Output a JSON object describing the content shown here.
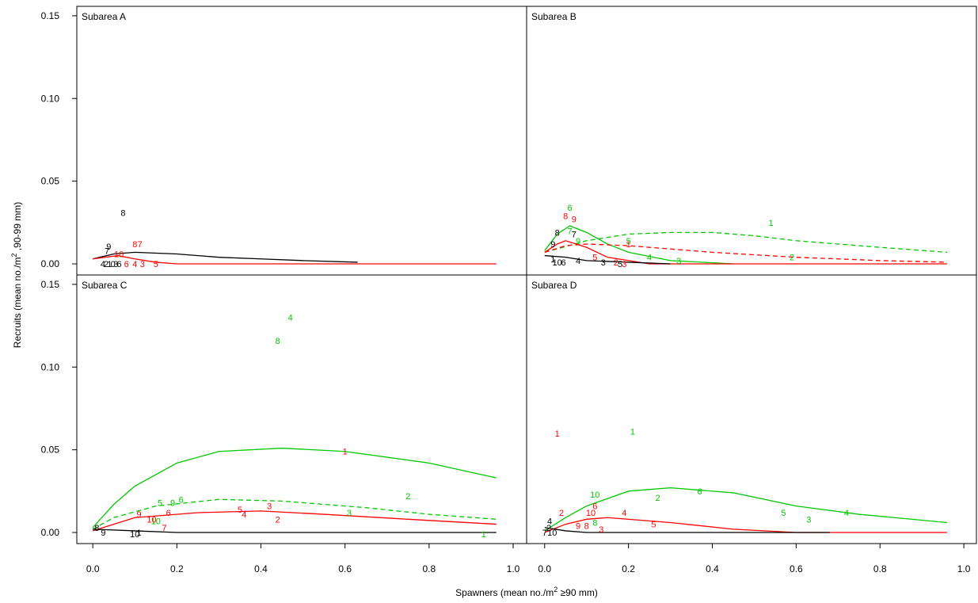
{
  "y_label": [
    "Recruits (mean no./m",
    "2",
    " ,90-99 mm)"
  ],
  "x_label": [
    "Spawners (mean no./m",
    "2",
    " ≥90 mm)"
  ],
  "chart_data": [
    {
      "type": "scatter",
      "title": "Subarea A",
      "xlim": [
        -0.038,
        1.032
      ],
      "ylim": [
        -0.0067,
        0.1557
      ],
      "yticks": [
        {
          "value": 0,
          "label": "0.00"
        },
        {
          "value": 0.05,
          "label": "0.05"
        },
        {
          "value": 0.1,
          "label": "0.10"
        },
        {
          "value": 0.15,
          "label": "0.15"
        }
      ],
      "series": [
        {
          "style": "solid",
          "color": "#000000",
          "x": [
            0,
            0.05,
            0.1,
            0.2,
            0.3,
            0.4,
            0.5,
            0.63
          ],
          "values": [
            0.003,
            0.006,
            0.007,
            0.006,
            0.004,
            0.003,
            0.002,
            0.001
          ]
        },
        {
          "style": "solid",
          "color": "#ff0000",
          "x": [
            0,
            0.03,
            0.06,
            0.1,
            0.15,
            0.2,
            0.4,
            0.96
          ],
          "values": [
            0.003,
            0.004,
            0.005,
            0.003,
            0.001,
            0.0,
            0.0,
            0.0
          ]
        },
        {
          "style": "labels",
          "color": "#000000",
          "labels": [
            "8",
            "9",
            "7",
            "4",
            "2",
            "1",
            "0",
            "3",
            "6"
          ],
          "x": [
            0.072,
            0.038,
            0.034,
            0.024,
            0.032,
            0.04,
            0.048,
            0.055,
            0.063
          ],
          "values": [
            0.031,
            0.0105,
            0.008,
            0.0,
            0.0,
            0.0,
            0.0,
            0.0,
            0.0
          ]
        },
        {
          "style": "labels",
          "color": "#ff0000",
          "labels": [
            "8",
            "7",
            "10",
            "4",
            "3",
            "6",
            "5"
          ],
          "x": [
            0.1,
            0.112,
            0.062,
            0.1,
            0.118,
            0.08,
            0.15
          ],
          "values": [
            0.012,
            0.012,
            0.006,
            0.0,
            0.0,
            0.0,
            0.0
          ]
        }
      ]
    },
    {
      "type": "scatter",
      "title": "Subarea B",
      "xlim": [
        -0.043,
        1.03
      ],
      "ylim": [
        -0.0067,
        0.1557
      ],
      "series": [
        {
          "style": "solid",
          "color": "#00c800",
          "x": [
            0,
            0.03,
            0.06,
            0.1,
            0.15,
            0.2,
            0.3,
            0.45
          ],
          "values": [
            0.008,
            0.018,
            0.023,
            0.019,
            0.012,
            0.007,
            0.002,
            0.0
          ]
        },
        {
          "style": "dashed",
          "color": "#00c800",
          "x": [
            0,
            0.1,
            0.2,
            0.3,
            0.4,
            0.5,
            0.6,
            0.8,
            0.96
          ],
          "values": [
            0.007,
            0.014,
            0.018,
            0.019,
            0.019,
            0.017,
            0.014,
            0.01,
            0.007
          ]
        },
        {
          "style": "solid",
          "color": "#ff0000",
          "x": [
            0,
            0.03,
            0.05,
            0.1,
            0.15,
            0.25,
            0.5,
            0.96
          ],
          "values": [
            0.007,
            0.012,
            0.014,
            0.01,
            0.004,
            0.0,
            0.0,
            0.0
          ]
        },
        {
          "style": "dashed",
          "color": "#ff0000",
          "x": [
            0,
            0.05,
            0.1,
            0.2,
            0.4,
            0.6,
            0.8,
            0.96
          ],
          "values": [
            0.007,
            0.011,
            0.012,
            0.011,
            0.007,
            0.004,
            0.002,
            0.001
          ]
        },
        {
          "style": "solid",
          "color": "#000000",
          "x": [
            0,
            0.05,
            0.1,
            0.2,
            0.3
          ],
          "values": [
            0.005,
            0.004,
            0.002,
            0.001,
            0.0
          ]
        },
        {
          "style": "labels",
          "color": "#00c800",
          "labels": [
            "1",
            "6",
            "2",
            "5",
            "3",
            "9",
            "4",
            "7"
          ],
          "x": [
            0.54,
            0.06,
            0.59,
            0.2,
            0.32,
            0.08,
            0.25,
            0.06
          ],
          "values": [
            0.025,
            0.034,
            0.004,
            0.014,
            0.002,
            0.014,
            0.004,
            0.02
          ]
        },
        {
          "style": "labels",
          "color": "#ff0000",
          "labels": [
            "8",
            "9",
            "1",
            "5",
            "2",
            "3"
          ],
          "x": [
            0.05,
            0.07,
            0.2,
            0.12,
            0.17,
            0.19
          ],
          "values": [
            0.029,
            0.027,
            0.012,
            0.004,
            0.001,
            0.0
          ]
        },
        {
          "style": "labels",
          "color": "#000000",
          "labels": [
            "8",
            "9",
            "7",
            "1",
            "10",
            "6",
            "3",
            "4",
            "5"
          ],
          "x": [
            0.03,
            0.02,
            0.07,
            0.02,
            0.03,
            0.045,
            0.14,
            0.08,
            0.18
          ],
          "values": [
            0.019,
            0.012,
            0.018,
            0.003,
            0.001,
            0.001,
            0.001,
            0.002,
            0.0
          ]
        }
      ]
    },
    {
      "type": "scatter",
      "title": "Subarea C",
      "xlim": [
        -0.038,
        1.032
      ],
      "ylim": [
        -0.0067,
        0.1557
      ],
      "yticks": [
        {
          "value": 0,
          "label": "0.00"
        },
        {
          "value": 0.05,
          "label": "0.05"
        },
        {
          "value": 0.1,
          "label": "0.10"
        },
        {
          "value": 0.15,
          "label": "0.15"
        }
      ],
      "xticks": [
        {
          "value": 0,
          "label": "0.0"
        },
        0.2,
        0.4,
        0.6,
        0.8,
        {
          "value": 1,
          "label": "1.0"
        }
      ],
      "series": [
        {
          "style": "solid",
          "color": "#00c800",
          "x": [
            0,
            0.05,
            0.1,
            0.2,
            0.3,
            0.45,
            0.6,
            0.8,
            0.96
          ],
          "values": [
            0.003,
            0.017,
            0.028,
            0.042,
            0.049,
            0.051,
            0.049,
            0.042,
            0.033
          ]
        },
        {
          "style": "dashed",
          "color": "#00c800",
          "x": [
            0,
            0.05,
            0.15,
            0.3,
            0.45,
            0.65,
            0.8,
            0.96
          ],
          "values": [
            0.002,
            0.009,
            0.016,
            0.02,
            0.019,
            0.015,
            0.011,
            0.008
          ]
        },
        {
          "style": "solid",
          "color": "#ff0000",
          "x": [
            0,
            0.1,
            0.25,
            0.4,
            0.55,
            0.75,
            0.96
          ],
          "values": [
            0.001,
            0.009,
            0.012,
            0.013,
            0.011,
            0.008,
            0.005
          ]
        },
        {
          "style": "solid",
          "color": "#000000",
          "x": [
            0,
            0.1,
            0.2,
            0.5,
            0.96
          ],
          "values": [
            0.002,
            0.001,
            0.0,
            0.0,
            0.0
          ]
        },
        {
          "style": "labels",
          "color": "#00c800",
          "labels": [
            "4",
            "8",
            "1",
            "2",
            "3",
            "6",
            "5",
            "9",
            "10"
          ],
          "x": [
            0.47,
            0.44,
            0.93,
            0.75,
            0.61,
            0.21,
            0.16,
            0.19,
            0.15
          ],
          "values": [
            0.13,
            0.116,
            -0.001,
            0.022,
            0.012,
            0.02,
            0.018,
            0.018,
            0.007
          ]
        },
        {
          "style": "labels",
          "color": "#ff0000",
          "labels": [
            "1",
            "3",
            "5",
            "4",
            "2",
            "9",
            "6",
            "10",
            "7"
          ],
          "x": [
            0.6,
            0.42,
            0.35,
            0.36,
            0.44,
            0.11,
            0.18,
            0.14,
            0.17
          ],
          "values": [
            0.049,
            0.016,
            0.014,
            0.011,
            0.008,
            0.011,
            0.012,
            0.008,
            0.003
          ]
        },
        {
          "style": "labels",
          "color": "#000000",
          "labels": [
            "8",
            "9",
            "10",
            "1"
          ],
          "x": [
            0.01,
            0.025,
            0.1,
            0.11
          ],
          "values": [
            0.003,
            0.0,
            -0.001,
            0.0
          ]
        }
      ]
    },
    {
      "type": "scatter",
      "title": "Subarea D",
      "xlim": [
        -0.043,
        1.03
      ],
      "ylim": [
        -0.0067,
        0.1557
      ],
      "xticks": [
        {
          "value": 0,
          "label": "0.0"
        },
        0.2,
        0.4,
        0.6,
        0.8,
        {
          "value": 1,
          "label": "1.0"
        }
      ],
      "series": [
        {
          "style": "solid",
          "color": "#00c800",
          "x": [
            0,
            0.05,
            0.1,
            0.2,
            0.3,
            0.45,
            0.6,
            0.75,
            0.96
          ],
          "values": [
            0.001,
            0.009,
            0.016,
            0.025,
            0.027,
            0.024,
            0.016,
            0.011,
            0.006
          ]
        },
        {
          "style": "solid",
          "color": "#ff0000",
          "x": [
            0,
            0.05,
            0.1,
            0.15,
            0.3,
            0.45,
            0.6,
            0.96
          ],
          "values": [
            0.0,
            0.005,
            0.008,
            0.009,
            0.006,
            0.002,
            0.0,
            0.0
          ]
        },
        {
          "style": "solid",
          "color": "#000000",
          "x": [
            0,
            0.05,
            0.1,
            0.3,
            0.68
          ],
          "values": [
            0.003,
            0.001,
            0.0,
            0.0,
            0.0
          ]
        },
        {
          "style": "labels",
          "color": "#00c800",
          "labels": [
            "1",
            "10",
            "6",
            "2",
            "5",
            "3",
            "4",
            "8"
          ],
          "x": [
            0.21,
            0.12,
            0.37,
            0.27,
            0.57,
            0.63,
            0.72,
            0.12
          ],
          "values": [
            0.061,
            0.023,
            0.025,
            0.021,
            0.012,
            0.008,
            0.012,
            0.006
          ]
        },
        {
          "style": "labels",
          "color": "#ff0000",
          "labels": [
            "1",
            "6",
            "10",
            "2",
            "4",
            "5",
            "9",
            "8",
            "3"
          ],
          "x": [
            0.03,
            0.12,
            0.11,
            0.04,
            0.19,
            0.26,
            0.08,
            0.1,
            0.135
          ],
          "values": [
            0.06,
            0.016,
            0.012,
            0.012,
            0.012,
            0.005,
            0.004,
            0.004,
            0.002
          ]
        },
        {
          "style": "labels",
          "color": "#000000",
          "labels": [
            "4",
            "2",
            "7",
            "10"
          ],
          "x": [
            0.012,
            0.01,
            0.0,
            0.018
          ],
          "values": [
            0.007,
            0.003,
            0.0,
            0.0
          ]
        }
      ]
    }
  ]
}
